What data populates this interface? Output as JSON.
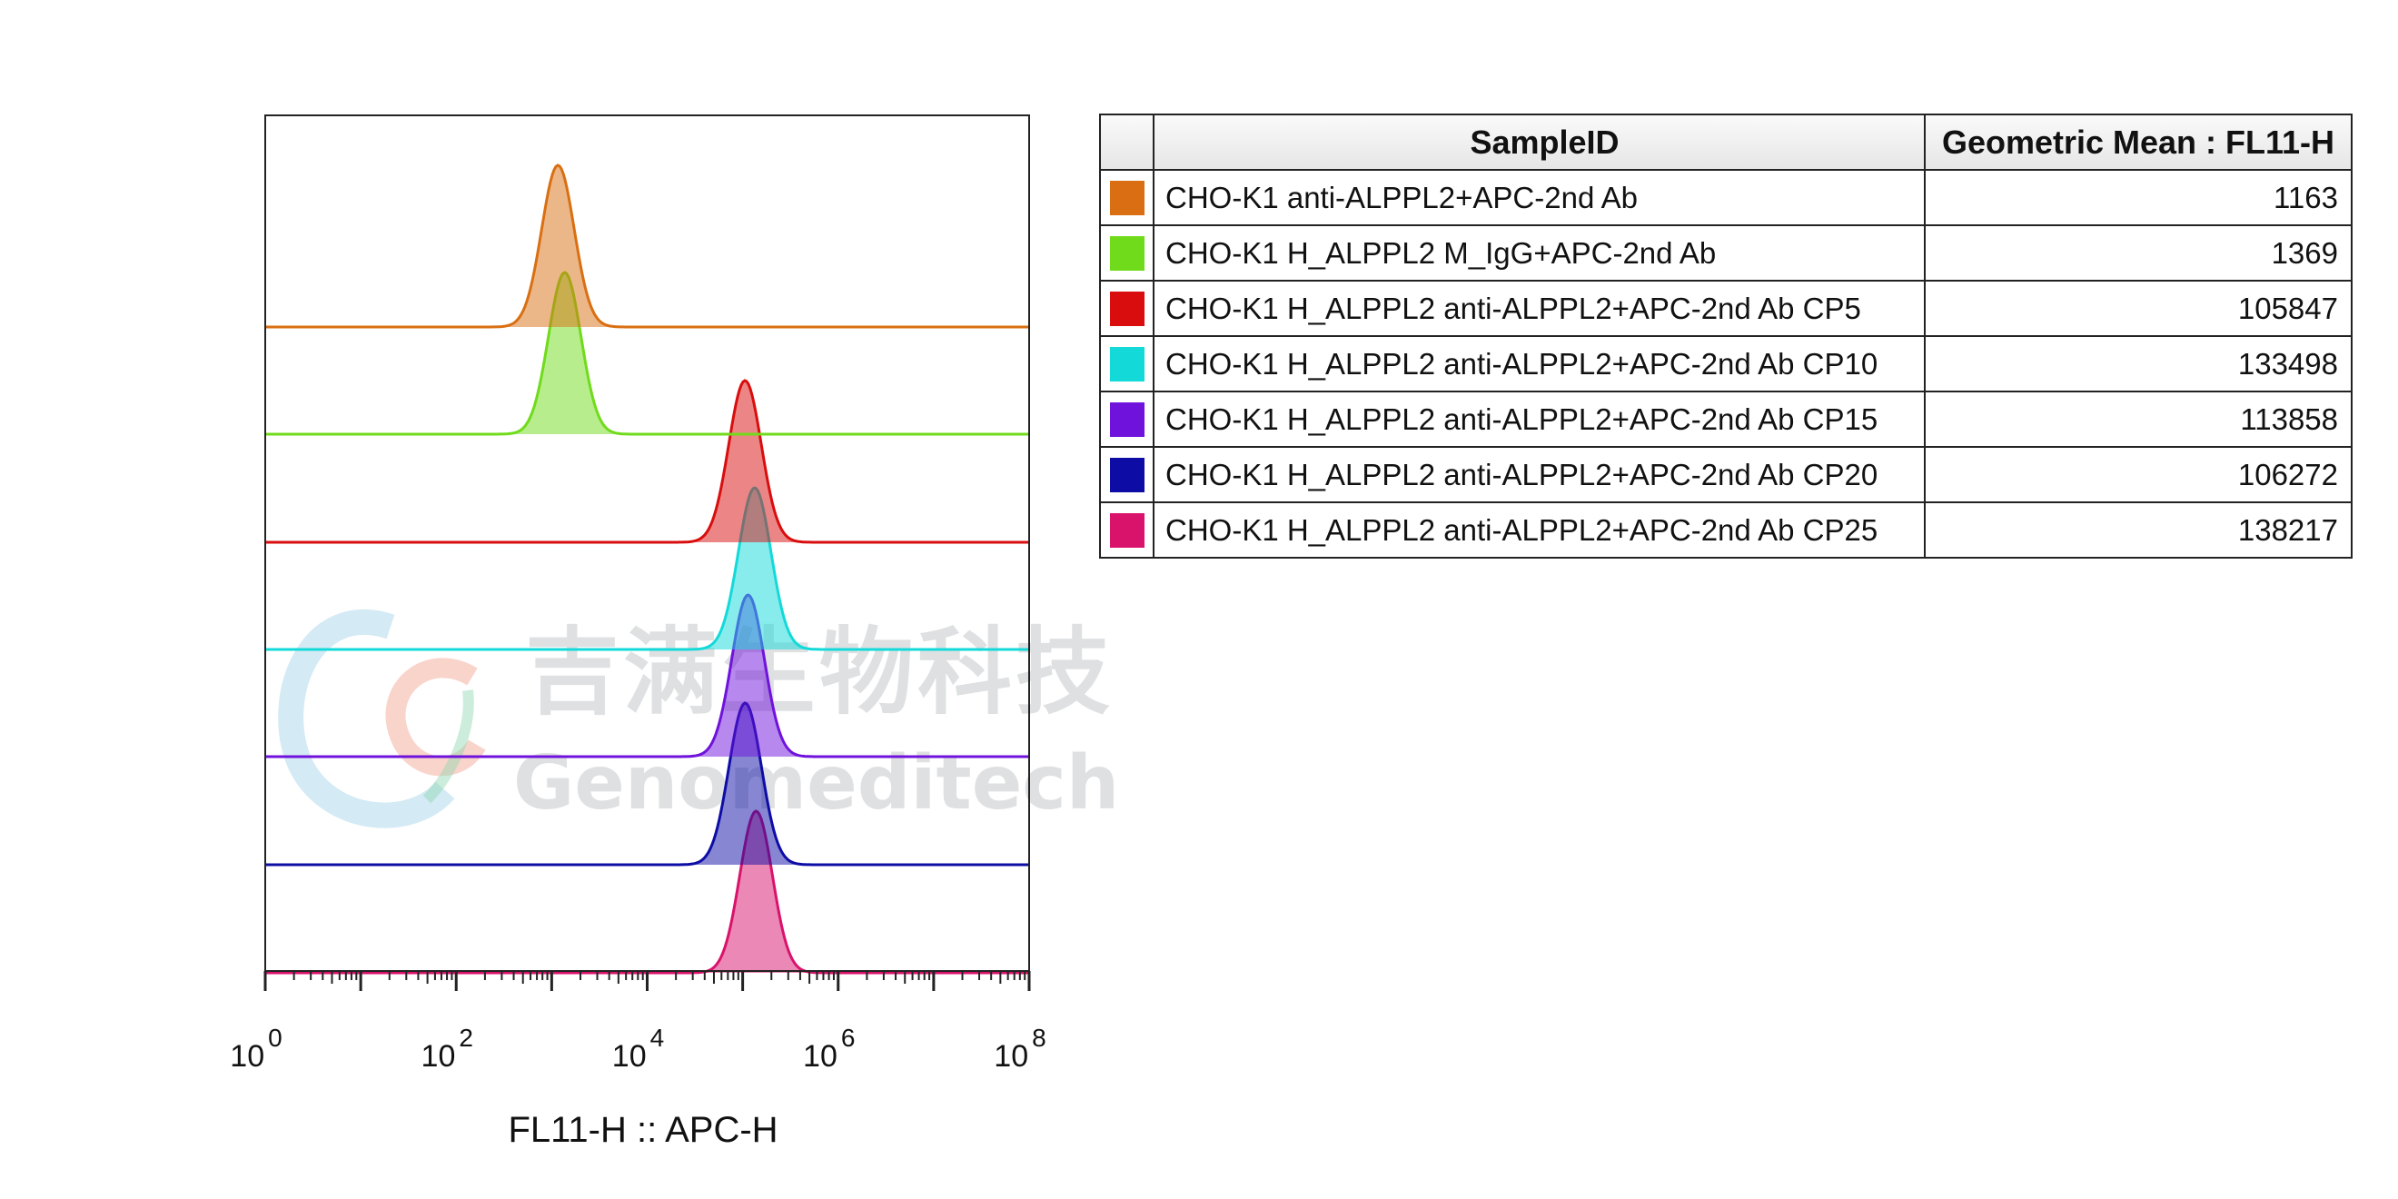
{
  "chart_data": {
    "type": "histogram-overlay",
    "xlabel": "FL11-H :: APC-H",
    "x_scale": "log",
    "xlim": [
      1,
      100000000
    ],
    "x_ticks": [
      {
        "base": "10",
        "exp": "0",
        "value": 1
      },
      {
        "base": "10",
        "exp": "2",
        "value": 100
      },
      {
        "base": "10",
        "exp": "4",
        "value": 10000
      },
      {
        "base": "10",
        "exp": "6",
        "value": 1000000
      },
      {
        "base": "10",
        "exp": "8",
        "value": 100000000
      }
    ],
    "series": [
      {
        "name": "CHO-K1 anti-ALPPL2+APC-2nd Ab",
        "color": "#d96f12",
        "peak": 1163
      },
      {
        "name": "CHO-K1 H_ALPPL2 M_IgG+APC-2nd Ab",
        "color": "#70db1b",
        "peak": 1369
      },
      {
        "name": "CHO-K1 H_ALPPL2 anti-ALPPL2+APC-2nd Ab CP5",
        "color": "#d90d0d",
        "peak": 105847
      },
      {
        "name": "CHO-K1 H_ALPPL2 anti-ALPPL2+APC-2nd Ab CP10",
        "color": "#14d9d9",
        "peak": 133498
      },
      {
        "name": "CHO-K1 H_ALPPL2 anti-ALPPL2+APC-2nd Ab CP15",
        "color": "#6f12db",
        "peak": 113858
      },
      {
        "name": "CHO-K1 H_ALPPL2 anti-ALPPL2+APC-2nd Ab CP20",
        "color": "#0d0da6",
        "peak": 106272
      },
      {
        "name": "CHO-K1 H_ALPPL2 anti-ALPPL2+APC-2nd Ab CP25",
        "color": "#d9126c",
        "peak": 138217
      }
    ]
  },
  "table": {
    "headers": {
      "sample": "SampleID",
      "value": "Geometric Mean : FL11-H"
    },
    "rows": [
      {
        "sample": "CHO-K1 anti-ALPPL2+APC-2nd Ab",
        "value": "1163",
        "color": "#d96f12"
      },
      {
        "sample": "CHO-K1 H_ALPPL2 M_IgG+APC-2nd Ab",
        "value": "1369",
        "color": "#70db1b"
      },
      {
        "sample": "CHO-K1 H_ALPPL2 anti-ALPPL2+APC-2nd Ab CP5",
        "value": "105847",
        "color": "#d90d0d"
      },
      {
        "sample": "CHO-K1 H_ALPPL2 anti-ALPPL2+APC-2nd Ab CP10",
        "value": "133498",
        "color": "#14d9d9"
      },
      {
        "sample": "CHO-K1 H_ALPPL2 anti-ALPPL2+APC-2nd Ab CP15",
        "value": "113858",
        "color": "#6f12db"
      },
      {
        "sample": "CHO-K1 H_ALPPL2 anti-ALPPL2+APC-2nd Ab CP20",
        "value": "106272",
        "color": "#0d0da6"
      },
      {
        "sample": "CHO-K1 H_ALPPL2 anti-ALPPL2+APC-2nd Ab CP25",
        "value": "138217",
        "color": "#d9126c"
      }
    ]
  },
  "watermark": {
    "text_cn": "吉满生物科技",
    "text_en": "Genomeditech"
  }
}
